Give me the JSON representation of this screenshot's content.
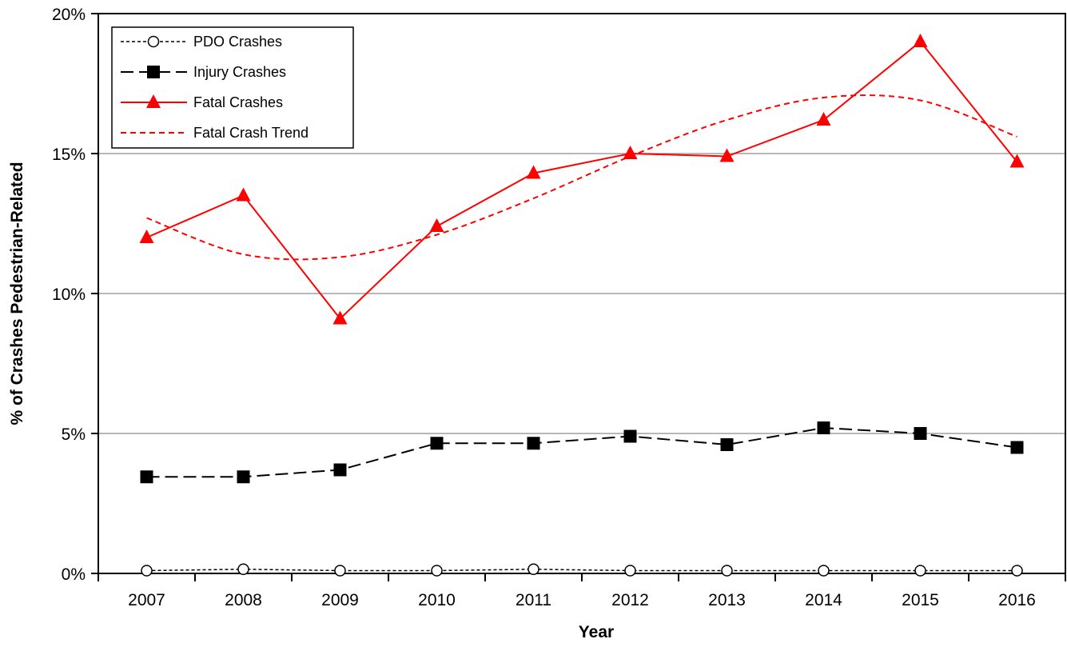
{
  "chart_data": {
    "type": "line",
    "title": "",
    "xlabel": "Year",
    "ylabel": "% of Crashes Pedestrian-Related",
    "categories": [
      "2007",
      "2008",
      "2009",
      "2010",
      "2011",
      "2012",
      "2013",
      "2014",
      "2015",
      "2016"
    ],
    "ylim": [
      0,
      20
    ],
    "yticks": [
      0,
      5,
      10,
      15,
      20
    ],
    "ytick_labels": [
      "0%",
      "5%",
      "10%",
      "15%",
      "20%"
    ],
    "grid": "horizontal",
    "legend_position": "top-left",
    "series": [
      {
        "name": "PDO Crashes",
        "values": [
          0.1,
          0.15,
          0.1,
          0.1,
          0.15,
          0.1,
          0.1,
          0.1,
          0.1,
          0.1
        ],
        "color": "#000000",
        "line": "dotted",
        "marker": "circle-open"
      },
      {
        "name": "Injury Crashes",
        "values": [
          3.45,
          3.45,
          3.7,
          4.65,
          4.65,
          4.9,
          4.6,
          5.2,
          5.0,
          4.5
        ],
        "color": "#000000",
        "line": "dashed",
        "marker": "square"
      },
      {
        "name": "Fatal Crashes",
        "values": [
          12.0,
          13.5,
          9.1,
          12.4,
          14.3,
          15.0,
          14.9,
          16.2,
          19.0,
          14.7
        ],
        "color": "#ff0000",
        "line": "solid",
        "marker": "triangle"
      },
      {
        "name": "Fatal Crash Trend",
        "values": [
          12.7,
          11.4,
          11.3,
          12.1,
          13.4,
          14.9,
          16.2,
          17.0,
          16.9,
          15.6
        ],
        "color": "#ff0000",
        "line": "dashed",
        "marker": "none"
      }
    ]
  }
}
